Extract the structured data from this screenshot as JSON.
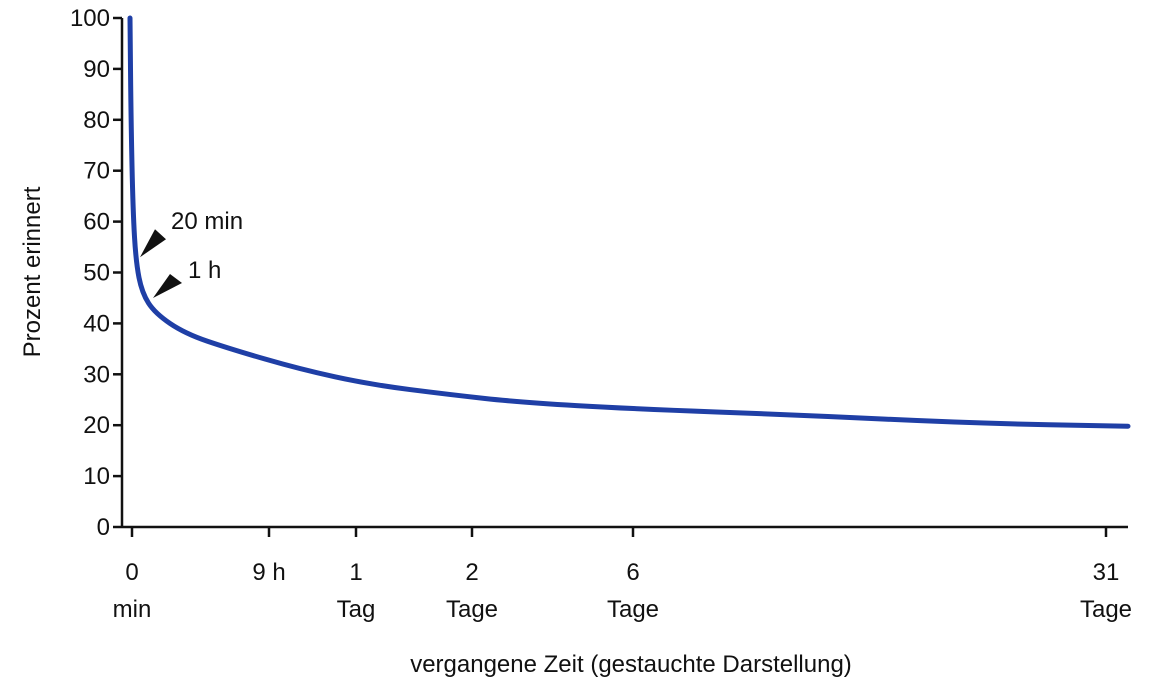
{
  "chart_data": {
    "type": "line",
    "title": "",
    "xlabel": "vergangene Zeit (gestauchte Darstellung)",
    "ylabel": "Prozent erinnert",
    "ylim": [
      0,
      100
    ],
    "y_ticks": [
      0,
      10,
      20,
      30,
      40,
      50,
      60,
      70,
      80,
      90,
      100
    ],
    "x_scale": "compressed (non-linear)",
    "x_ticks": [
      {
        "line1": "0",
        "line2": "min"
      },
      {
        "line1": "9 h",
        "line2": ""
      },
      {
        "line1": "1",
        "line2": "Tag"
      },
      {
        "line1": "2",
        "line2": "Tage"
      },
      {
        "line1": "6",
        "line2": "Tage"
      },
      {
        "line1": "31",
        "line2": "Tage"
      }
    ],
    "series": [
      {
        "points": [
          {
            "x": "0 min",
            "y": 100
          },
          {
            "x": "20 min",
            "y": 58
          },
          {
            "x": "1 h",
            "y": 44
          },
          {
            "x": "9 h",
            "y": 36
          },
          {
            "x": "1 Tag",
            "y": 34
          },
          {
            "x": "2 Tage",
            "y": 28
          },
          {
            "x": "6 Tage",
            "y": 25
          },
          {
            "x": "31 Tage",
            "y": 21
          }
        ]
      }
    ],
    "annotations": [
      {
        "label": "20 min",
        "y": 53
      },
      {
        "label": "1 h",
        "y": 45
      }
    ],
    "line_color": "#1f3fa6",
    "grid": false,
    "legend": "none"
  }
}
